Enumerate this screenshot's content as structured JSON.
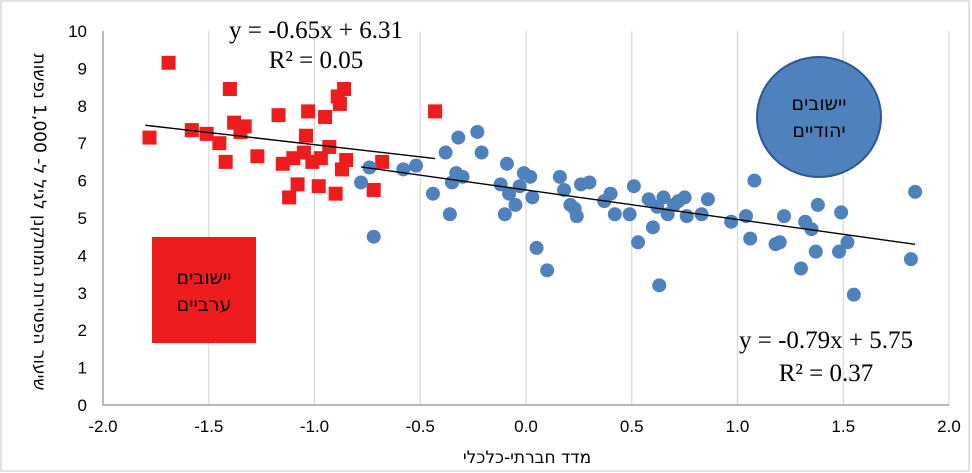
{
  "chart_data": {
    "type": "scatter",
    "title": "",
    "xlabel": "מדד חברתי-כלכלי",
    "ylabel": "שיעור הפטירות המותקנן לגיל ל- 1,000 נפשות",
    "xlim": [
      -2.0,
      2.0
    ],
    "ylim": [
      0,
      10
    ],
    "x_ticks": [
      "-2.0",
      "-1.5",
      "-1.0",
      "-0.5",
      "0.0",
      "0.5",
      "1.0",
      "1.5",
      "2.0"
    ],
    "y_ticks": [
      "0",
      "1",
      "2",
      "3",
      "4",
      "5",
      "6",
      "7",
      "8",
      "9",
      "10"
    ],
    "grid": "vertical",
    "series": [
      {
        "name": "יישובים ערביים",
        "marker": "square",
        "color": "#ee1c1c",
        "points": [
          [
            -1.78,
            7.15
          ],
          [
            -1.69,
            9.15
          ],
          [
            -1.58,
            7.35
          ],
          [
            -1.51,
            7.25
          ],
          [
            -1.45,
            7.0
          ],
          [
            -1.42,
            6.5
          ],
          [
            -1.4,
            8.45
          ],
          [
            -1.38,
            7.55
          ],
          [
            -1.35,
            7.3
          ],
          [
            -1.33,
            7.45
          ],
          [
            -1.27,
            6.65
          ],
          [
            -1.17,
            7.75
          ],
          [
            -1.15,
            6.45
          ],
          [
            -1.12,
            5.55
          ],
          [
            -1.1,
            6.6
          ],
          [
            -1.08,
            5.9
          ],
          [
            -1.05,
            6.75
          ],
          [
            -1.04,
            7.2
          ],
          [
            -1.03,
            7.85
          ],
          [
            -1.01,
            6.5
          ],
          [
            -0.98,
            5.85
          ],
          [
            -0.97,
            6.6
          ],
          [
            -0.95,
            7.7
          ],
          [
            -0.93,
            6.9
          ],
          [
            -0.9,
            5.65
          ],
          [
            -0.89,
            8.25
          ],
          [
            -0.88,
            8.05
          ],
          [
            -0.87,
            6.3
          ],
          [
            -0.86,
            8.45
          ],
          [
            -0.85,
            6.55
          ],
          [
            -0.72,
            5.75
          ],
          [
            -0.68,
            6.5
          ],
          [
            -0.43,
            7.85
          ]
        ]
      },
      {
        "name": "יישובים יהודיים",
        "marker": "circle",
        "color": "#4f81bd",
        "points": [
          [
            -0.78,
            5.95
          ],
          [
            -0.74,
            6.35
          ],
          [
            -0.72,
            4.5
          ],
          [
            -0.58,
            6.3
          ],
          [
            -0.52,
            6.4
          ],
          [
            -0.44,
            5.65
          ],
          [
            -0.38,
            6.75
          ],
          [
            -0.36,
            5.1
          ],
          [
            -0.35,
            5.95
          ],
          [
            -0.33,
            6.2
          ],
          [
            -0.32,
            7.15
          ],
          [
            -0.3,
            6.1
          ],
          [
            -0.23,
            7.3
          ],
          [
            -0.21,
            6.75
          ],
          [
            -0.12,
            5.9
          ],
          [
            -0.1,
            5.1
          ],
          [
            -0.09,
            6.45
          ],
          [
            -0.08,
            5.65
          ],
          [
            -0.05,
            5.35
          ],
          [
            -0.03,
            5.85
          ],
          [
            -0.01,
            6.2
          ],
          [
            0.02,
            6.1
          ],
          [
            0.03,
            5.55
          ],
          [
            0.05,
            4.2
          ],
          [
            0.1,
            3.6
          ],
          [
            0.16,
            6.1
          ],
          [
            0.18,
            5.75
          ],
          [
            0.21,
            5.35
          ],
          [
            0.23,
            5.25
          ],
          [
            0.24,
            5.05
          ],
          [
            0.26,
            5.9
          ],
          [
            0.3,
            5.95
          ],
          [
            0.37,
            5.45
          ],
          [
            0.4,
            5.65
          ],
          [
            0.42,
            5.1
          ],
          [
            0.49,
            5.1
          ],
          [
            0.51,
            5.85
          ],
          [
            0.53,
            4.35
          ],
          [
            0.58,
            5.5
          ],
          [
            0.6,
            4.75
          ],
          [
            0.62,
            5.3
          ],
          [
            0.63,
            3.2
          ],
          [
            0.65,
            5.55
          ],
          [
            0.67,
            5.1
          ],
          [
            0.7,
            5.35
          ],
          [
            0.72,
            5.45
          ],
          [
            0.75,
            5.55
          ],
          [
            0.76,
            5.05
          ],
          [
            0.83,
            5.1
          ],
          [
            0.86,
            5.5
          ],
          [
            0.97,
            4.9
          ],
          [
            1.04,
            5.05
          ],
          [
            1.06,
            4.45
          ],
          [
            1.08,
            6.0
          ],
          [
            1.18,
            4.3
          ],
          [
            1.2,
            4.35
          ],
          [
            1.22,
            5.05
          ],
          [
            1.3,
            3.65
          ],
          [
            1.32,
            4.9
          ],
          [
            1.35,
            4.7
          ],
          [
            1.37,
            4.1
          ],
          [
            1.38,
            5.35
          ],
          [
            1.48,
            4.1
          ],
          [
            1.49,
            5.15
          ],
          [
            1.52,
            4.35
          ],
          [
            1.55,
            2.95
          ],
          [
            1.82,
            3.9
          ],
          [
            1.84,
            5.7
          ]
        ]
      }
    ],
    "trendlines": [
      {
        "series": "יישובים ערביים",
        "equation": "y = -0.65x + 6.31",
        "r2_label": "R² = 0.05",
        "slope": -0.65,
        "intercept": 6.31,
        "x_range": [
          -1.8,
          -0.43
        ],
        "color": "#000000"
      },
      {
        "series": "יישובים יהודיים",
        "equation": "y = -0.79x + 5.75",
        "r2_label": "R² = 0.37",
        "slope": -0.79,
        "intercept": 5.75,
        "x_range": [
          -0.78,
          1.84
        ],
        "color": "#000000"
      }
    ],
    "annotations": {
      "arab_label_line1": "יישובים",
      "arab_label_line2": "ערביים",
      "arab_color": "#ee1c1c",
      "jewish_label_line1": "יישובים",
      "jewish_label_line2": "יהודיים",
      "jewish_color": "#4f81bd"
    }
  }
}
